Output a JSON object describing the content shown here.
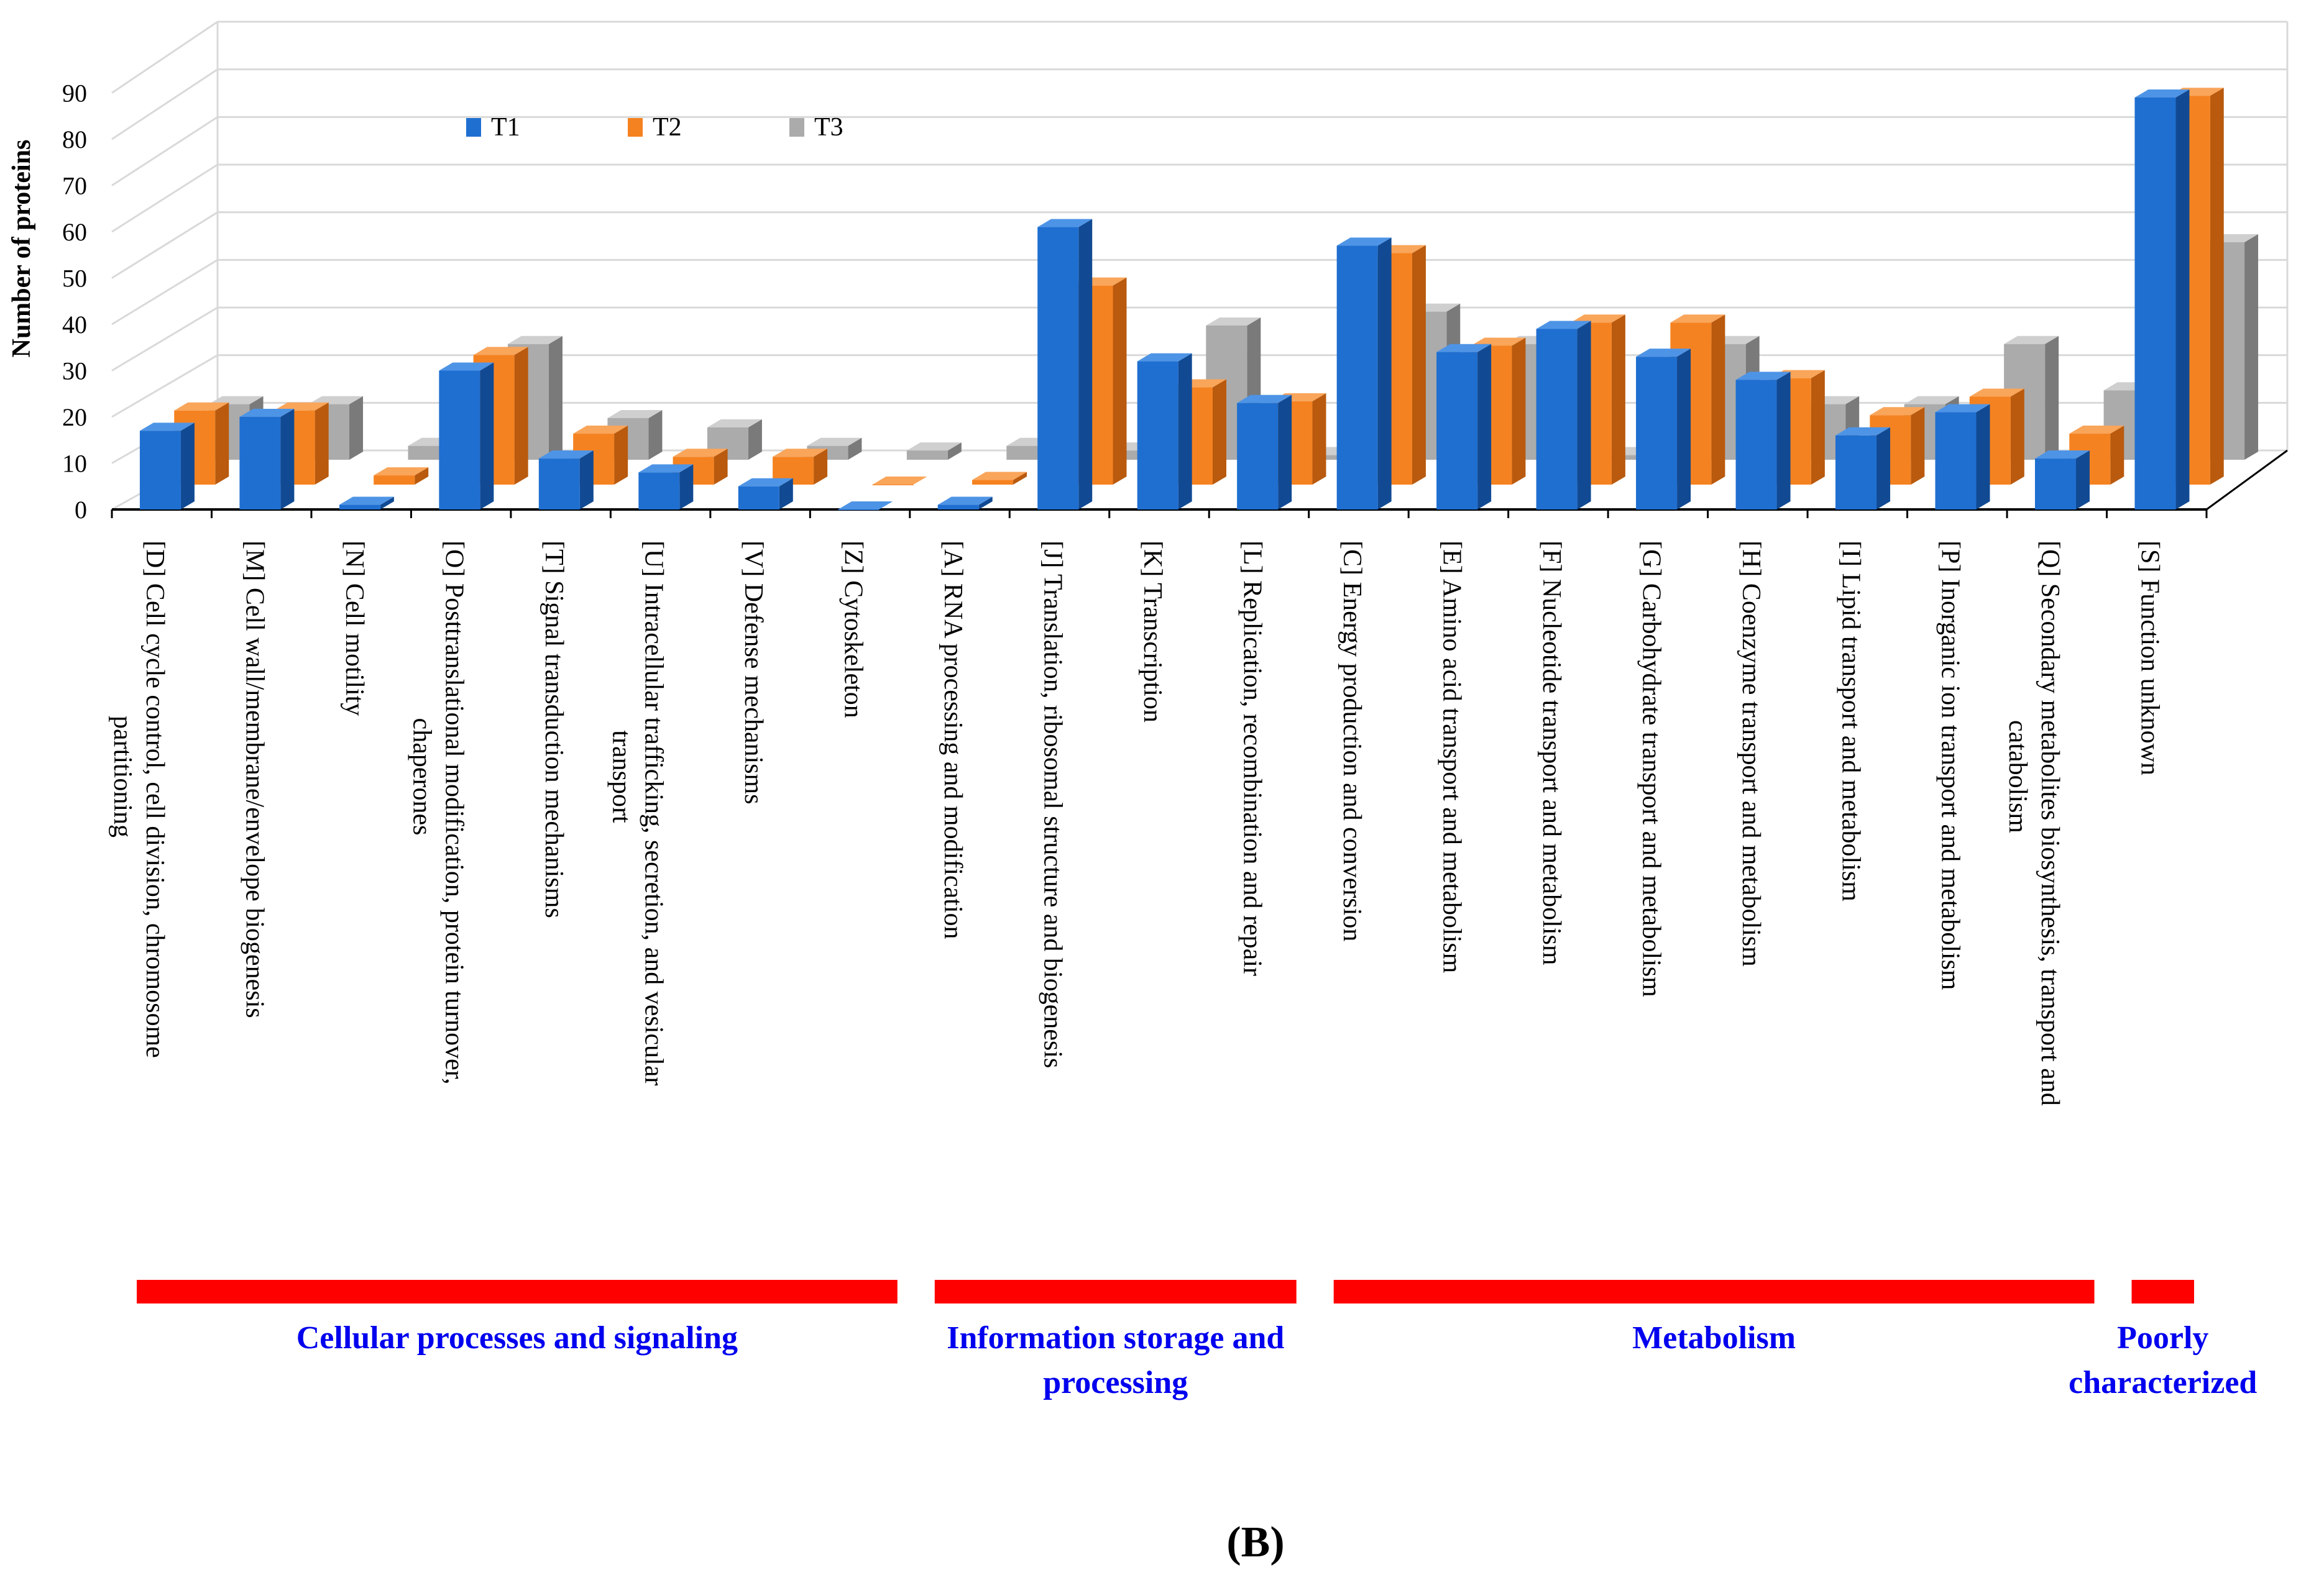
{
  "chart_data": {
    "type": "bar",
    "title": "",
    "xlabel": "",
    "ylabel": "Number of proteins",
    "ylim": [
      0,
      90
    ],
    "yticks": [
      "0",
      "10",
      "20",
      "30",
      "40",
      "50",
      "60",
      "70",
      "80",
      "90"
    ],
    "grid": true,
    "legend_position": "top-left",
    "categories": [
      [
        "[D] Cell cycle control, cell division, chromosome",
        "partitioning"
      ],
      [
        "[M] Cell wall/membrane/envelope biogenesis"
      ],
      [
        "[N] Cell motility"
      ],
      [
        "[O] Posttranslational modification, protein turnover,",
        "chaperones"
      ],
      [
        "[T] Signal transduction mechanisms"
      ],
      [
        "[U] Intracellular trafficking, secretion, and vesicular",
        "transport"
      ],
      [
        "[V] Defense mechanisms"
      ],
      [
        "[Z] Cytoskeleton"
      ],
      [
        "[A] RNA processing and modification"
      ],
      [
        "[J] Translation, ribosomal structure and biogenesis"
      ],
      [
        "[K] Transcription"
      ],
      [
        "[L] Replication, recombination and repair"
      ],
      [
        "[C] Energy production and conversion"
      ],
      [
        "[E] Amino acid transport and metabolism"
      ],
      [
        "[F] Nucleotide transport and metabolism"
      ],
      [
        "[G] Carbohydrate transport and metabolism"
      ],
      [
        "[H] Coenzyme transport and metabolism"
      ],
      [
        "[I] Lipid transport and metabolism"
      ],
      [
        "[P] Inorganic ion transport and metabolism"
      ],
      [
        "[Q] Secondary metabolites biosynthesis, transport and",
        "catabolism"
      ],
      [
        "[S] Function unknown"
      ]
    ],
    "series": [
      {
        "name": "T1",
        "color": "#1f6fd1",
        "side": "#114a93",
        "top": "#4e94e6",
        "values": [
          17,
          20,
          1,
          30,
          11,
          8,
          5,
          0,
          1,
          61,
          32,
          23,
          57,
          34,
          39,
          33,
          28,
          16,
          21,
          11,
          89
        ]
      },
      {
        "name": "T2",
        "color": "#f58220",
        "side": "#b95a0e",
        "top": "#f9a55a",
        "values": [
          16,
          16,
          2,
          28,
          11,
          6,
          6,
          0,
          1,
          43,
          21,
          18,
          50,
          30,
          35,
          35,
          23,
          15,
          19,
          11,
          84
        ]
      },
      {
        "name": "T3",
        "color": "#ababab",
        "side": "#7a7a7a",
        "top": "#cfcfcf",
        "values": [
          12,
          12,
          3,
          25,
          9,
          7,
          3,
          2,
          3,
          2,
          29,
          1,
          32,
          25,
          1,
          25,
          12,
          12,
          25,
          15,
          47
        ]
      }
    ],
    "groups": [
      {
        "label": [
          "Cellular  processes and signaling"
        ],
        "color": "#ff0000"
      },
      {
        "label": [
          "Information  storage and",
          "processing"
        ],
        "color": "#ff0000"
      },
      {
        "label": [
          "Metabolism"
        ],
        "color": "#ff0000"
      },
      {
        "label": [
          "Poorly",
          "characterized"
        ],
        "color": "#ff0000"
      }
    ]
  },
  "panel_label": "(B)"
}
